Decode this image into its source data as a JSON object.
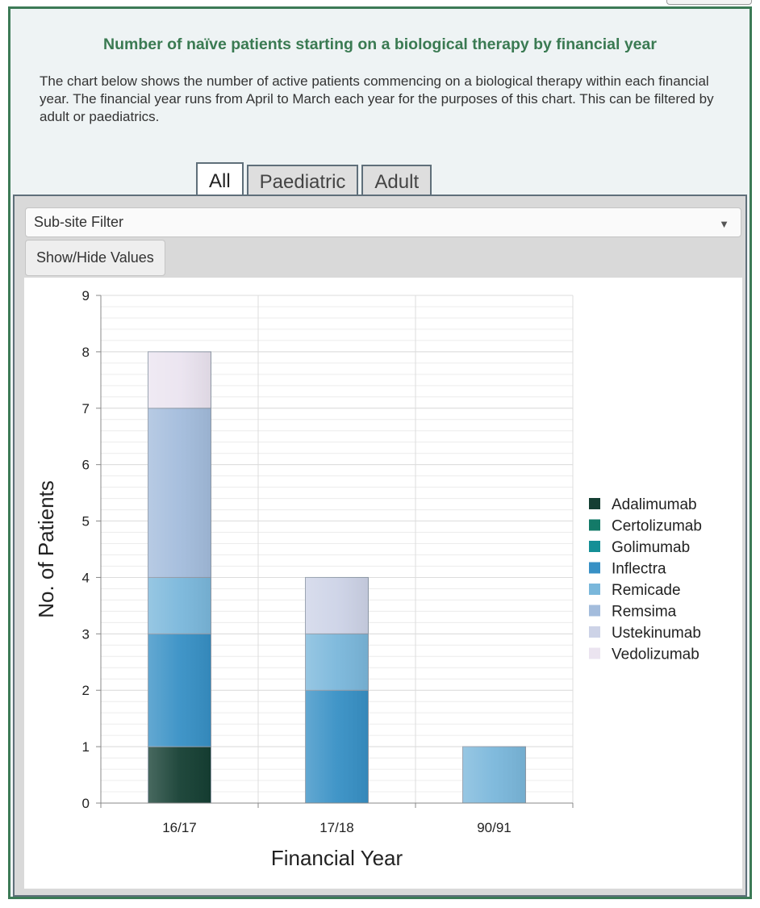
{
  "header": {
    "title": "Number of naïve patients starting on a biological therapy by financial year",
    "description": "The chart below shows the number of active patients commencing on a biological therapy within each financial year. The financial year runs from April to March each year for the purposes of this chart. This can be filtered by adult or paediatrics."
  },
  "tabs": [
    {
      "label": "All",
      "active": true
    },
    {
      "label": "Paediatric",
      "active": false
    },
    {
      "label": "Adult",
      "active": false
    }
  ],
  "controls": {
    "filter_label": "Sub-site Filter",
    "toggle_label": "Show/Hide Values"
  },
  "chart_data": {
    "type": "bar",
    "stacked": true,
    "categories": [
      "16/17",
      "17/18",
      "90/91"
    ],
    "xlabel": "Financial Year",
    "ylabel": "No. of Patients",
    "ylim": [
      0,
      9
    ],
    "yticks": [
      0,
      1,
      2,
      3,
      4,
      5,
      6,
      7,
      8,
      9
    ],
    "legend_position": "right",
    "series": [
      {
        "name": "Adalimumab",
        "color": "#153f33",
        "values": [
          1,
          0,
          0
        ]
      },
      {
        "name": "Certolizumab",
        "color": "#137a68",
        "values": [
          0,
          0,
          0
        ]
      },
      {
        "name": "Golimumab",
        "color": "#148f96",
        "values": [
          0,
          0,
          0
        ]
      },
      {
        "name": "Inflectra",
        "color": "#3790c5",
        "values": [
          2,
          2,
          0
        ]
      },
      {
        "name": "Remicade",
        "color": "#7ab7db",
        "values": [
          1,
          1,
          1
        ]
      },
      {
        "name": "Remsima",
        "color": "#a3bcdc",
        "values": [
          3,
          0,
          0
        ]
      },
      {
        "name": "Ustekinumab",
        "color": "#cdd3e7",
        "values": [
          0,
          1,
          0
        ]
      },
      {
        "name": "Vedolizumab",
        "color": "#ebe4f0",
        "values": [
          1,
          0,
          0
        ]
      }
    ]
  }
}
